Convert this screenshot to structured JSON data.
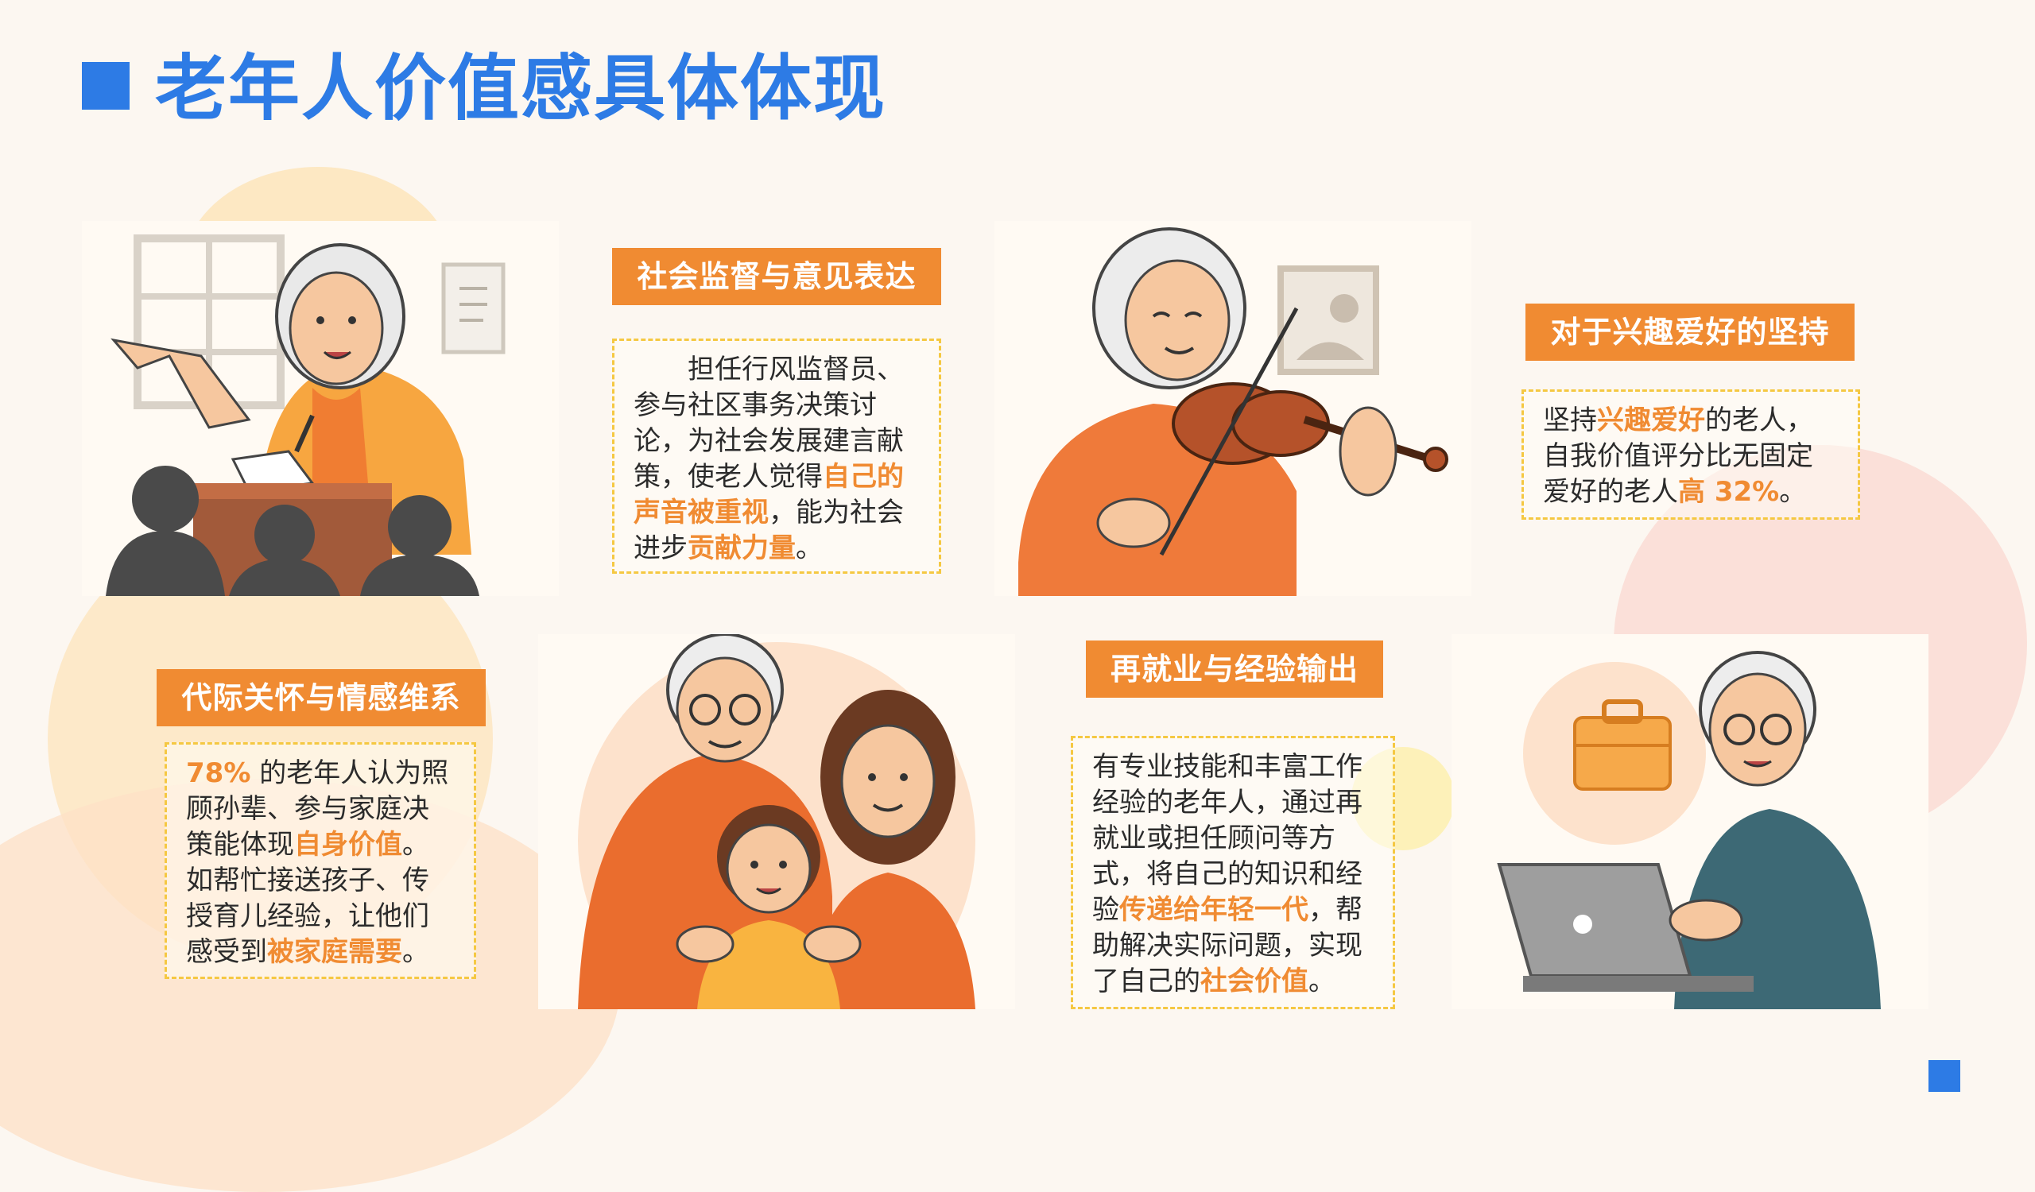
{
  "title": "老年人价值感具体体现",
  "sections": {
    "supervision": {
      "label": "社会监督与意见表达",
      "text": [
        "　　担任行风监督员、参与社区事务决策讨论，为社会发展建言献策，使老人觉得",
        "自己的声音被重视",
        "，能为社会进步",
        "贡献力量",
        "。"
      ]
    },
    "hobby": {
      "label": "对于兴趣爱好的坚持",
      "text": [
        "坚持",
        "兴趣爱好",
        "的老人，自我价值评分比无固定爱好的老人",
        "高 32%",
        "。"
      ]
    },
    "family": {
      "label": "代际关怀与情感维系",
      "text": [
        "78%",
        " 的老年人认为照顾孙辈、参与家庭决策能体现",
        "自身价值",
        "。如帮忙接送孩子、传授育儿经验，让他们感受到",
        "被家庭需要",
        "。"
      ]
    },
    "reemployment": {
      "label": "再就业与经验输出",
      "text": [
        "有专业技能和丰富工作经验的老年人，通过再就业或担任顾问等方式，将自己的知识和经验",
        "传递给年轻一代",
        "，帮助解决实际问题，实现了自己的",
        "社会价值",
        "。"
      ]
    }
  },
  "colors": {
    "accent": "#2d7be5",
    "orange": "#f08b32",
    "dash": "#f5c842"
  },
  "icons": [
    "speaker-illustration",
    "violin-illustration",
    "family-illustration",
    "laptop-illustration"
  ]
}
